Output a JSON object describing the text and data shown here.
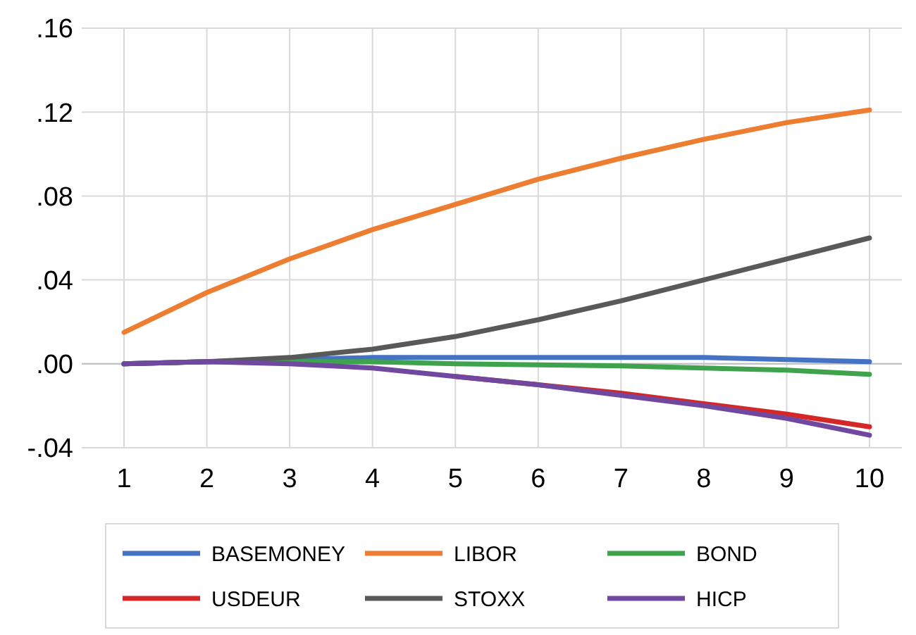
{
  "chart_data": {
    "type": "line",
    "categories": [
      "1",
      "2",
      "3",
      "4",
      "5",
      "6",
      "7",
      "8",
      "9",
      "10"
    ],
    "ylim": [
      -0.04,
      0.16
    ],
    "yticks": [
      {
        "value": -0.04,
        "label": "-.04"
      },
      {
        "value": 0,
        "label": ".00"
      },
      {
        "value": 0.04,
        "label": ".04"
      },
      {
        "value": 0.08,
        "label": ".08"
      },
      {
        "value": 0.12,
        "label": ".12"
      },
      {
        "value": 0.16,
        "label": ".16"
      }
    ],
    "grid": true,
    "legend": "bottom",
    "line_style": "solid",
    "series": [
      {
        "name": "BASEMONEY",
        "color": "#4472c4",
        "values": [
          0,
          0.001,
          0.002,
          0.003,
          0.003,
          0.003,
          0.003,
          0.003,
          0.002,
          0.001
        ]
      },
      {
        "name": "LIBOR",
        "color": "#ed7d31",
        "values": [
          0.015,
          0.034,
          0.05,
          0.064,
          0.076,
          0.088,
          0.098,
          0.107,
          0.115,
          0.121
        ]
      },
      {
        "name": "BOND",
        "color": "#3fa34d",
        "values": [
          0,
          0.001,
          0.001,
          0.001,
          0,
          -0.0005,
          -0.001,
          -0.002,
          -0.003,
          -0.005
        ]
      },
      {
        "name": "USDEUR",
        "color": "#d62728",
        "values": [
          null,
          null,
          null,
          null,
          -0.006,
          -0.01,
          -0.014,
          -0.019,
          -0.024,
          -0.03
        ]
      },
      {
        "name": "STOXX",
        "color": "#595959",
        "values": [
          0,
          0.001,
          0.003,
          0.007,
          0.013,
          0.021,
          0.03,
          0.04,
          0.05,
          0.06
        ]
      },
      {
        "name": "HICP",
        "color": "#7048a0",
        "values": [
          0,
          0.001,
          0,
          -0.002,
          -0.006,
          -0.01,
          -0.015,
          -0.02,
          -0.026,
          -0.034
        ]
      }
    ]
  }
}
